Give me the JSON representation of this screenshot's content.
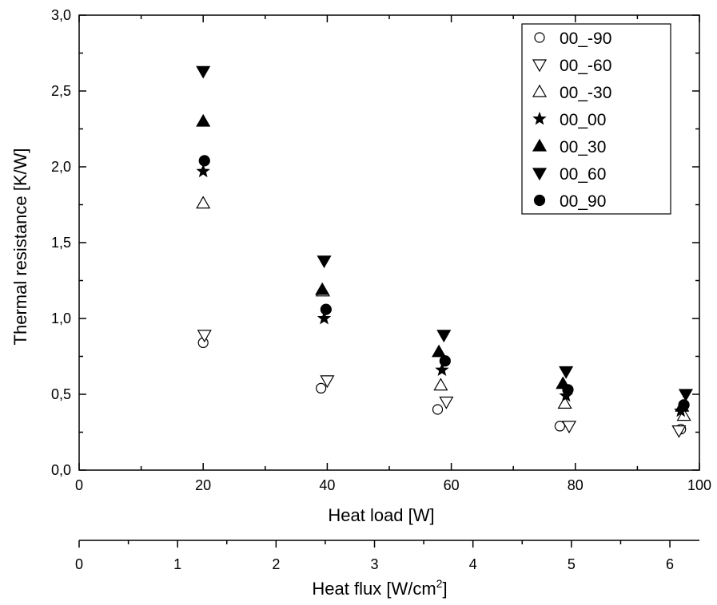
{
  "chart_data": {
    "type": "scatter",
    "xlabel": "Heat load [W]",
    "ylabel": "Thermal resistance [K/W]",
    "xlim": [
      0,
      100
    ],
    "ylim": [
      0,
      3
    ],
    "x_ticks": [
      "0",
      "20",
      "40",
      "60",
      "80",
      "100"
    ],
    "y_ticks": [
      "0,0",
      "0,5",
      "1,0",
      "1,5",
      "2,0",
      "2,5",
      "3,0"
    ],
    "secondary_x_axis": {
      "label_prefix": "Heat flux [W/cm",
      "label_superscript": "2",
      "label_suffix": "]",
      "xlim": [
        0,
        6.3
      ],
      "ticks": [
        "0",
        "1",
        "2",
        "3",
        "4",
        "5",
        "6"
      ]
    },
    "grid": false,
    "legend_position": "top-right",
    "series": [
      {
        "name": "00_-90",
        "marker": "circle-open",
        "x": [
          20.0,
          39.0,
          57.8,
          77.5,
          97.0
        ],
        "y": [
          0.84,
          0.54,
          0.4,
          0.29,
          0.27
        ]
      },
      {
        "name": "00_-60",
        "marker": "triangle-down-open",
        "x": [
          20.2,
          40.0,
          59.2,
          79.0,
          96.7
        ],
        "y": [
          0.89,
          0.59,
          0.45,
          0.29,
          0.26
        ]
      },
      {
        "name": "00_-30",
        "marker": "triangle-up-open",
        "x": [
          20.0,
          39.3,
          58.3,
          78.3,
          97.5
        ],
        "y": [
          1.76,
          1.18,
          0.56,
          0.44,
          0.36
        ]
      },
      {
        "name": "00_00",
        "marker": "star",
        "x": [
          20.0,
          39.5,
          58.5,
          78.5,
          97.0
        ],
        "y": [
          1.97,
          1.0,
          0.66,
          0.49,
          0.39
        ]
      },
      {
        "name": "00_30",
        "marker": "triangle-up-filled",
        "x": [
          20.0,
          39.2,
          58.0,
          78.0,
          97.2
        ],
        "y": [
          2.3,
          1.19,
          0.78,
          0.57,
          0.42
        ]
      },
      {
        "name": "00_60",
        "marker": "triangle-down-filled",
        "x": [
          20.0,
          39.5,
          58.8,
          78.5,
          97.8
        ],
        "y": [
          2.63,
          1.38,
          0.89,
          0.65,
          0.5
        ]
      },
      {
        "name": "00_90",
        "marker": "circle-filled",
        "x": [
          20.2,
          39.8,
          59.0,
          78.8,
          97.5
        ],
        "y": [
          2.04,
          1.06,
          0.72,
          0.53,
          0.43
        ]
      }
    ]
  }
}
